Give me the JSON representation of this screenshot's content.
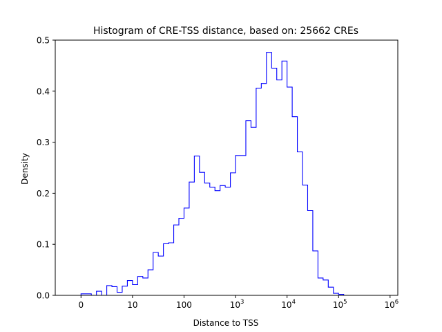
{
  "chart_data": {
    "type": "histogram",
    "title": "Histogram of CRE-TSS distance, based on: 25662 CREs",
    "xlabel": "Distance to TSS",
    "ylabel": "Density",
    "x_scale": "symlog",
    "xlim": [
      -0.5,
      6.15
    ],
    "ylim": [
      0,
      0.5
    ],
    "x_ticks": [
      {
        "label": "0",
        "base": "",
        "exp": ""
      },
      {
        "label": "10",
        "base": "",
        "exp": ""
      },
      {
        "label": "100",
        "base": "",
        "exp": ""
      },
      {
        "label": "",
        "base": "10",
        "exp": "3"
      },
      {
        "label": "",
        "base": "10",
        "exp": "4"
      },
      {
        "label": "",
        "base": "10",
        "exp": "5"
      },
      {
        "label": "",
        "base": "10",
        "exp": "6"
      }
    ],
    "y_ticks": [
      "0.0",
      "0.1",
      "0.2",
      "0.3",
      "0.4",
      "0.5"
    ],
    "y_tick_values": [
      0,
      0.1,
      0.2,
      0.3,
      0.4,
      0.5
    ],
    "color": "#0000ff",
    "grid": false,
    "bin_edges_log10": [
      0,
      0.1,
      0.2,
      0.3,
      0.4,
      0.5,
      0.6,
      0.7,
      0.8,
      0.9,
      1.0,
      1.1,
      1.2,
      1.3,
      1.4,
      1.5,
      1.6,
      1.7,
      1.8,
      1.9,
      2.0,
      2.1,
      2.2,
      2.3,
      2.4,
      2.5,
      2.6,
      2.7,
      2.8,
      2.9,
      3.0,
      3.1,
      3.2,
      3.3,
      3.4,
      3.5,
      3.6,
      3.7,
      3.8,
      3.9,
      4.0,
      4.1,
      4.2,
      4.3,
      4.4,
      4.5,
      4.6,
      4.7,
      4.8,
      4.9,
      5.0,
      5.1,
      5.2,
      5.3,
      5.4,
      5.5,
      5.6,
      5.7,
      5.8
    ],
    "densities": [
      0.003,
      0.003,
      0.0,
      0.008,
      0.0,
      0.019,
      0.017,
      0.006,
      0.018,
      0.029,
      0.021,
      0.037,
      0.034,
      0.05,
      0.084,
      0.077,
      0.101,
      0.103,
      0.138,
      0.151,
      0.171,
      0.222,
      0.273,
      0.241,
      0.22,
      0.212,
      0.205,
      0.215,
      0.212,
      0.24,
      0.274,
      0.274,
      0.342,
      0.329,
      0.406,
      0.415,
      0.476,
      0.445,
      0.422,
      0.459,
      0.408,
      0.35,
      0.281,
      0.216,
      0.166,
      0.087,
      0.034,
      0.03,
      0.016,
      0.004,
      0.002,
      0.0,
      0.0,
      0.0,
      0.0,
      0.0,
      0.0,
      0.0
    ]
  }
}
